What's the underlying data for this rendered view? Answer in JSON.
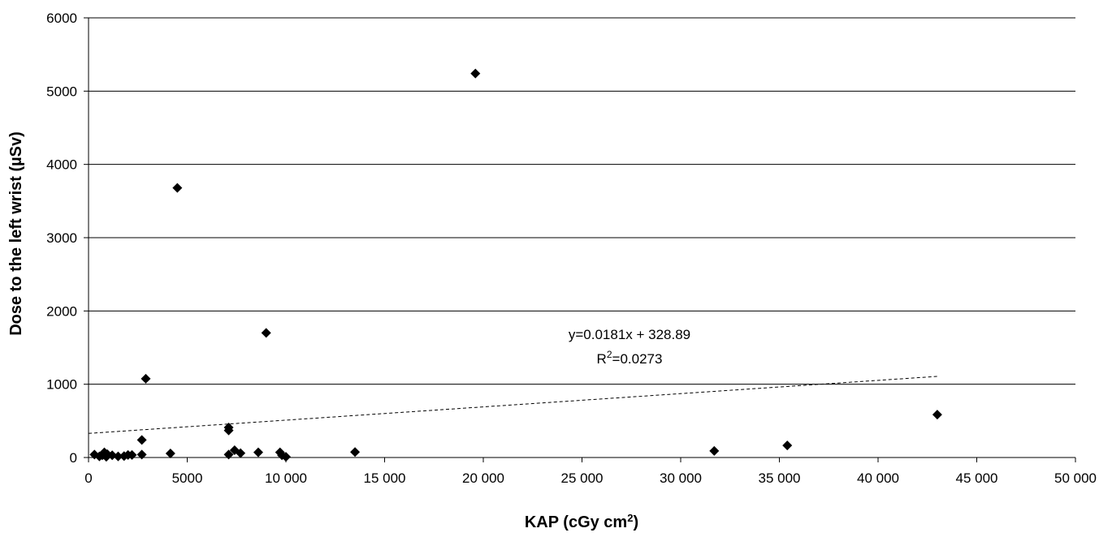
{
  "chart_data": {
    "type": "scatter",
    "title": "",
    "xlabel": "KAP (cGy cm",
    "xlabel_sup": "2",
    "xlabel_tail": ")",
    "ylabel": "Dose to the left wrist (µSv)",
    "xlim": [
      0,
      50000
    ],
    "ylim": [
      0,
      6000
    ],
    "grid": "horizontal",
    "x_ticks": [
      0,
      5000,
      10000,
      15000,
      20000,
      25000,
      30000,
      35000,
      40000,
      45000,
      50000
    ],
    "x_tick_labels": [
      "0",
      "5000",
      "10 000",
      "15 000",
      "20 000",
      "25 000",
      "30 000",
      "35 000",
      "40 000",
      "45 000",
      "50 000"
    ],
    "y_ticks": [
      0,
      1000,
      2000,
      3000,
      4000,
      5000,
      6000
    ],
    "y_tick_labels": [
      "0",
      "1000",
      "2000",
      "3000",
      "4000",
      "5000",
      "6000"
    ],
    "series": [
      {
        "marker": "diamond",
        "color": "#000000",
        "points": [
          {
            "x": 300,
            "y": 40
          },
          {
            "x": 550,
            "y": 15
          },
          {
            "x": 700,
            "y": 30
          },
          {
            "x": 800,
            "y": 70
          },
          {
            "x": 900,
            "y": 10
          },
          {
            "x": 950,
            "y": 45
          },
          {
            "x": 1200,
            "y": 30
          },
          {
            "x": 1500,
            "y": 15
          },
          {
            "x": 1800,
            "y": 20
          },
          {
            "x": 2000,
            "y": 35
          },
          {
            "x": 2200,
            "y": 35
          },
          {
            "x": 2700,
            "y": 240
          },
          {
            "x": 2700,
            "y": 40
          },
          {
            "x": 2900,
            "y": 1075
          },
          {
            "x": 4150,
            "y": 55
          },
          {
            "x": 4500,
            "y": 3680
          },
          {
            "x": 7100,
            "y": 410
          },
          {
            "x": 7100,
            "y": 370
          },
          {
            "x": 7100,
            "y": 40
          },
          {
            "x": 7400,
            "y": 100
          },
          {
            "x": 7700,
            "y": 60
          },
          {
            "x": 8600,
            "y": 70
          },
          {
            "x": 9000,
            "y": 1700
          },
          {
            "x": 9700,
            "y": 70
          },
          {
            "x": 9800,
            "y": 30
          },
          {
            "x": 10000,
            "y": 10
          },
          {
            "x": 13500,
            "y": 75
          },
          {
            "x": 19600,
            "y": 5240
          },
          {
            "x": 31700,
            "y": 90
          },
          {
            "x": 35400,
            "y": 165
          },
          {
            "x": 43000,
            "y": 585
          }
        ]
      }
    ],
    "trendline": {
      "style": "dashed",
      "slope": 0.0181,
      "intercept": 328.89,
      "x_range": [
        0,
        43000
      ],
      "equation_label": "y=0.0181x + 328.89",
      "r2_prefix": "R",
      "r2_sup": "2",
      "r2_value": "=0.0273"
    }
  }
}
